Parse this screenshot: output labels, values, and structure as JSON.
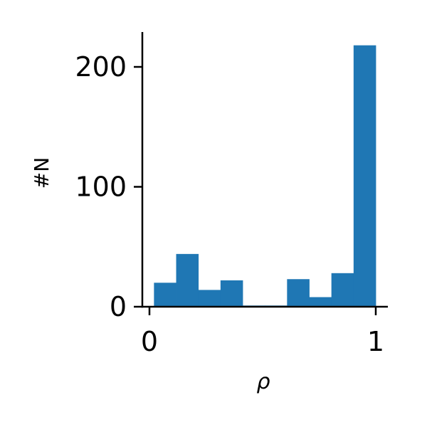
{
  "chart_data": {
    "type": "bar",
    "title": "",
    "xlabel": "ρ",
    "ylabel": "#N",
    "bin_edges": [
      0.02,
      0.118,
      0.216,
      0.314,
      0.412,
      0.51,
      0.608,
      0.706,
      0.804,
      0.902,
      1.0
    ],
    "values": [
      20,
      44,
      14,
      22,
      1,
      1,
      23,
      8,
      28,
      218
    ],
    "xlim": [
      -0.03,
      1.05
    ],
    "ylim": [
      0,
      230
    ],
    "xticks": [
      0,
      1
    ],
    "xtick_labels": [
      "0",
      "1"
    ],
    "yticks": [
      0,
      100,
      200
    ],
    "ytick_labels": [
      "0",
      "100",
      "200"
    ],
    "bar_color": "#1f77b4",
    "grid": false,
    "legend": "none"
  }
}
